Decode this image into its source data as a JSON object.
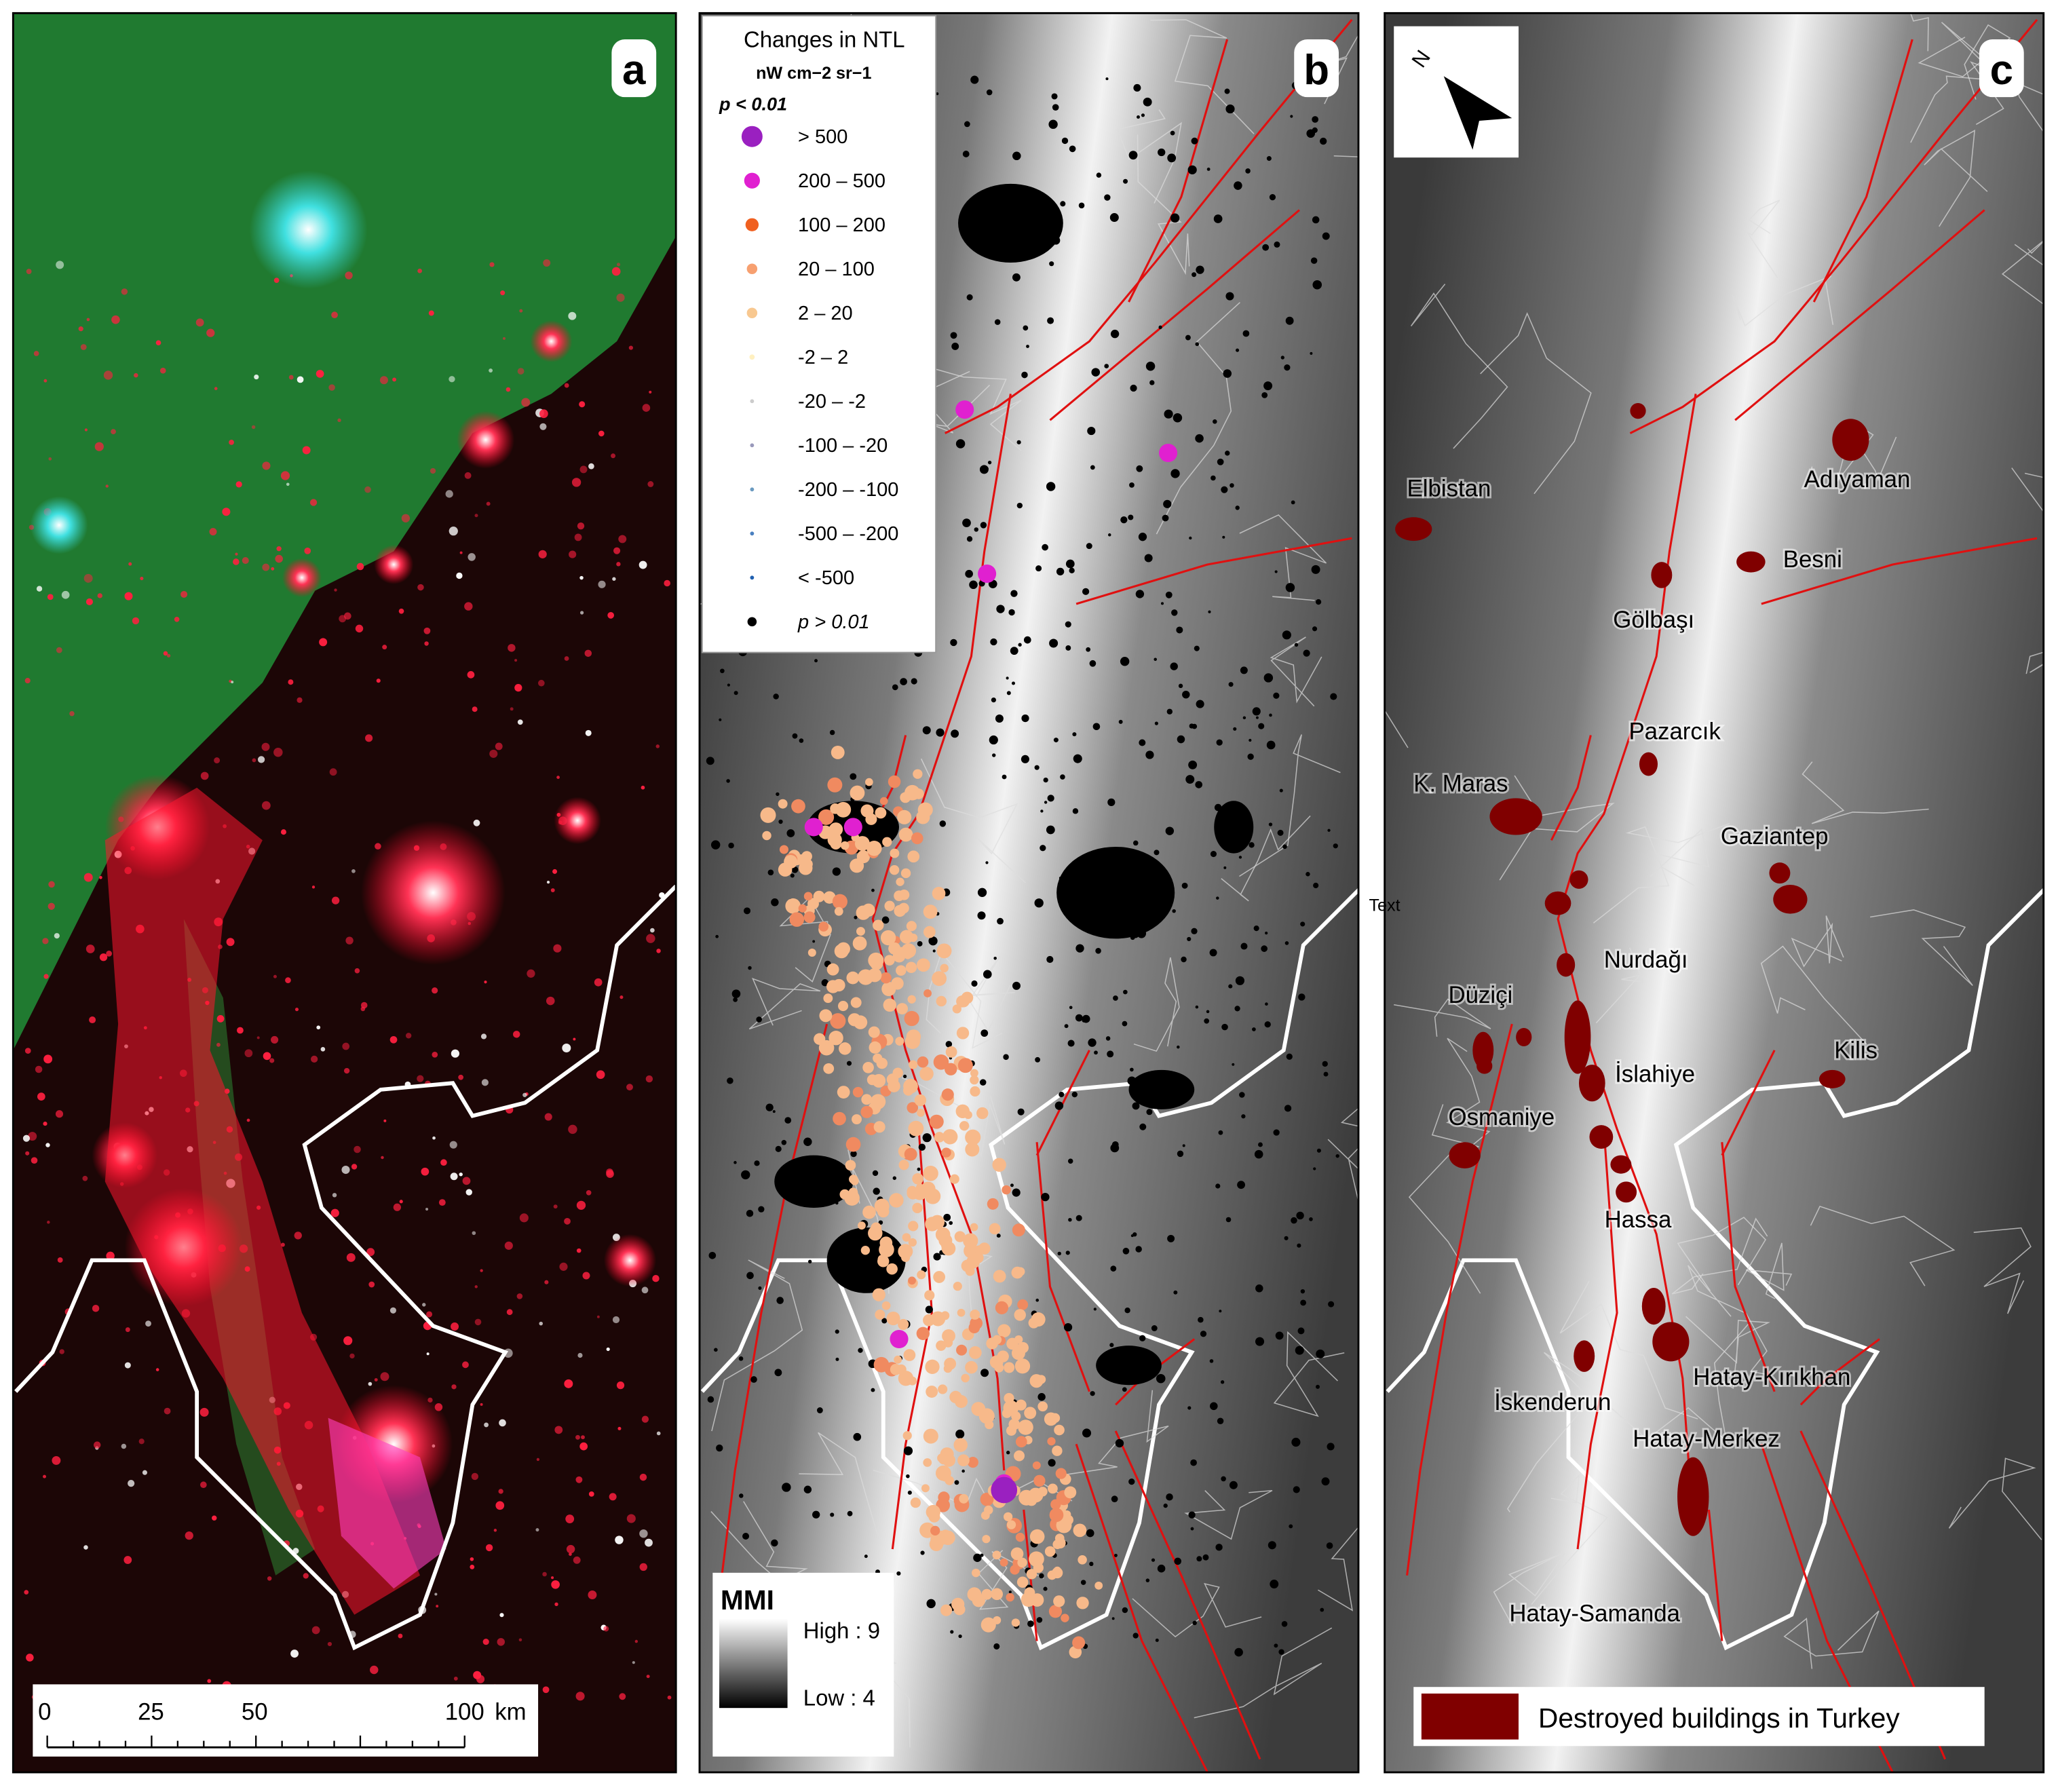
{
  "panels": [
    {
      "label": "a",
      "scale_bar": {
        "ticks": [
          0,
          25,
          50,
          100
        ],
        "unit": "km"
      }
    },
    {
      "label": "b",
      "legend": {
        "title": "Changes in NTL",
        "unit": "nW cm−2 sr−1",
        "significance": "p < 0.01",
        "items": [
          "> 500",
          "200 – 500",
          "100 – 200",
          "20 – 100",
          "2 – 20",
          "-2 – 2",
          "-20 – -2",
          "-100 – -20",
          "-200 – -100",
          "-500 – -200",
          "< -500",
          "p > 0.01"
        ]
      },
      "mmi": {
        "title": "MMI",
        "high": "High : 9",
        "low": "Low : 4"
      },
      "annotation": "Text"
    },
    {
      "label": "c",
      "north": "N",
      "places": [
        "Elbistan",
        "Adıyaman",
        "Besni",
        "Gölbaşı",
        "Pazarcık",
        "K. Maras",
        "Gaziantep",
        "Nurdağı",
        "Düziçi",
        "Kilis",
        "İslahiye",
        "Osmaniye",
        "Hassa",
        "Hatay-Kırıkhan",
        "İskenderun",
        "Hatay-Merkez",
        "Hatay-Samanda"
      ],
      "legend": "Destroyed buildings in Turkey"
    }
  ]
}
